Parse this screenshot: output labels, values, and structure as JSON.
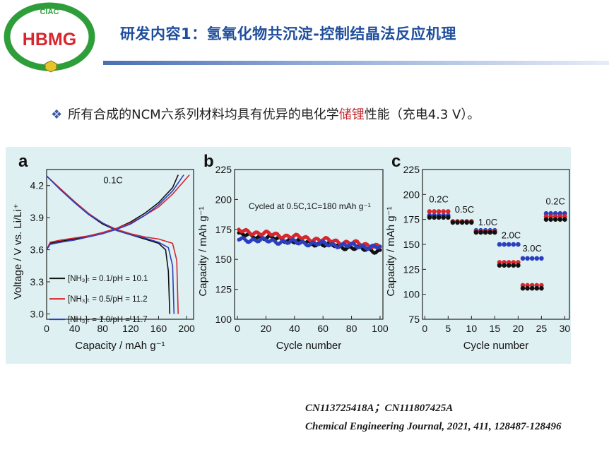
{
  "logo": {
    "top_text": "CIAC",
    "main_text": "HBMG"
  },
  "header": {
    "title": "研发内容1：氢氧化物共沉淀-控制结晶法反应机理"
  },
  "bullet": {
    "prefix": "所有合成的NCM六系列材料均具有优异的电化学",
    "highlight": "储锂",
    "suffix": "性能（充电4.3 V）。"
  },
  "colors": {
    "title": "#1f4e9c",
    "highlight": "#c0282d",
    "panel_bg": "#dff0f2",
    "black": "#111111",
    "red": "#d7262d",
    "blue": "#2a3fbf"
  },
  "chart_data": [
    {
      "type": "line",
      "panel_label": "a",
      "xlabel": "Capacity / mAh g⁻¹",
      "ylabel": "Voltage / V vs. Li/Li⁺",
      "xlim": [
        0,
        210
      ],
      "ylim": [
        2.95,
        4.35
      ],
      "xticks": [
        0,
        40,
        80,
        120,
        160,
        200
      ],
      "yticks": [
        3.0,
        3.3,
        3.6,
        3.9,
        4.2
      ],
      "annotation": "0.1C",
      "legend": "bottom-left",
      "series": [
        {
          "name": "[NH₃]ₜ = 0.1/pH = 10.1",
          "color": "#111111",
          "charge": [
            [
              0,
              3.6
            ],
            [
              5,
              3.66
            ],
            [
              20,
              3.68
            ],
            [
              40,
              3.7
            ],
            [
              60,
              3.73
            ],
            [
              80,
              3.76
            ],
            [
              100,
              3.8
            ],
            [
              120,
              3.86
            ],
            [
              140,
              3.94
            ],
            [
              160,
              4.04
            ],
            [
              180,
              4.18
            ],
            [
              188,
              4.3
            ]
          ],
          "discharge": [
            [
              0,
              4.29
            ],
            [
              20,
              4.16
            ],
            [
              40,
              4.04
            ],
            [
              60,
              3.93
            ],
            [
              80,
              3.84
            ],
            [
              100,
              3.78
            ],
            [
              120,
              3.74
            ],
            [
              140,
              3.7
            ],
            [
              160,
              3.66
            ],
            [
              170,
              3.6
            ],
            [
              174,
              3.4
            ],
            [
              176,
              3.0
            ]
          ]
        },
        {
          "name": "[NH₃]ₜ = 0.5/pH = 11.2",
          "color": "#d7262d",
          "charge": [
            [
              0,
              3.6
            ],
            [
              5,
              3.67
            ],
            [
              20,
              3.69
            ],
            [
              40,
              3.71
            ],
            [
              60,
              3.73
            ],
            [
              80,
              3.76
            ],
            [
              100,
              3.8
            ],
            [
              120,
              3.85
            ],
            [
              140,
              3.92
            ],
            [
              160,
              4.0
            ],
            [
              180,
              4.12
            ],
            [
              204,
              4.3
            ]
          ],
          "discharge": [
            [
              0,
              4.29
            ],
            [
              20,
              4.17
            ],
            [
              40,
              4.05
            ],
            [
              60,
              3.94
            ],
            [
              80,
              3.85
            ],
            [
              100,
              3.79
            ],
            [
              120,
              3.75
            ],
            [
              140,
              3.72
            ],
            [
              160,
              3.7
            ],
            [
              180,
              3.66
            ],
            [
              186,
              3.5
            ],
            [
              188,
              3.0
            ]
          ]
        },
        {
          "name": "[NH₃]ₜ = 1.0/pH = 11.7",
          "color": "#2a3fbf",
          "charge": [
            [
              0,
              3.6
            ],
            [
              5,
              3.65
            ],
            [
              20,
              3.67
            ],
            [
              40,
              3.69
            ],
            [
              60,
              3.72
            ],
            [
              80,
              3.75
            ],
            [
              100,
              3.79
            ],
            [
              120,
              3.84
            ],
            [
              140,
              3.92
            ],
            [
              160,
              4.02
            ],
            [
              180,
              4.15
            ],
            [
              196,
              4.3
            ]
          ],
          "discharge": [
            [
              0,
              4.29
            ],
            [
              20,
              4.16
            ],
            [
              40,
              4.04
            ],
            [
              60,
              3.93
            ],
            [
              80,
              3.85
            ],
            [
              100,
              3.78
            ],
            [
              120,
              3.74
            ],
            [
              140,
              3.71
            ],
            [
              160,
              3.67
            ],
            [
              174,
              3.62
            ],
            [
              180,
              3.45
            ],
            [
              182,
              3.0
            ]
          ]
        }
      ]
    },
    {
      "type": "scatter",
      "panel_label": "b",
      "xlabel": "Cycle number",
      "ylabel": "Capacity / mAh g⁻¹",
      "xlim": [
        -2,
        102
      ],
      "ylim": [
        100,
        225
      ],
      "xticks": [
        0,
        20,
        40,
        60,
        80,
        100
      ],
      "yticks": [
        100,
        125,
        150,
        175,
        200,
        225
      ],
      "annotation": "Cycled at 0.5C,1C=180 mAh g⁻¹",
      "series": [
        {
          "color": "#111111",
          "start": 171,
          "end": 157
        },
        {
          "color": "#d7262d",
          "start": 174,
          "end": 161
        },
        {
          "color": "#2a3fbf",
          "start": 167,
          "end": 160
        }
      ]
    },
    {
      "type": "scatter",
      "panel_label": "c",
      "xlabel": "Cycle number",
      "ylabel": "Capacity / mAh g⁻¹",
      "xlim": [
        -0.5,
        31
      ],
      "ylim": [
        75,
        225
      ],
      "xticks": [
        0,
        5,
        10,
        15,
        20,
        25,
        30
      ],
      "yticks": [
        75,
        100,
        125,
        150,
        175,
        200,
        225
      ],
      "rate_labels": [
        {
          "text": "0.2C",
          "x": 3,
          "y": 192
        },
        {
          "text": "0.5C",
          "x": 8.5,
          "y": 182
        },
        {
          "text": "1.0C",
          "x": 13.5,
          "y": 169
        },
        {
          "text": "2.0C",
          "x": 18.5,
          "y": 156
        },
        {
          "text": "3.0C",
          "x": 23,
          "y": 143
        },
        {
          "text": "0.2C",
          "x": 28,
          "y": 190
        }
      ],
      "groups": [
        {
          "cycles": [
            1,
            2,
            3,
            4,
            5
          ],
          "black": 177,
          "red": 183,
          "blue": 179
        },
        {
          "cycles": [
            6,
            7,
            8,
            9,
            10
          ],
          "black": 172,
          "red": 173,
          "blue": 173
        },
        {
          "cycles": [
            11,
            12,
            13,
            14,
            15
          ],
          "black": 162,
          "red": 163,
          "blue": 164
        },
        {
          "cycles": [
            16,
            17,
            18,
            19,
            20
          ],
          "black": 129,
          "red": 132,
          "blue": 150
        },
        {
          "cycles": [
            21,
            22,
            23,
            24,
            25
          ],
          "black": 106,
          "red": 109,
          "blue": 136
        },
        {
          "cycles": [
            26,
            27,
            28,
            29,
            30
          ],
          "black": 175,
          "red": 178,
          "blue": 181
        }
      ]
    }
  ],
  "references": {
    "line1": "CN113725418A；CN111807425A",
    "line2": "Chemical Engineering Journal, 2021, 411, 128487-128496"
  }
}
